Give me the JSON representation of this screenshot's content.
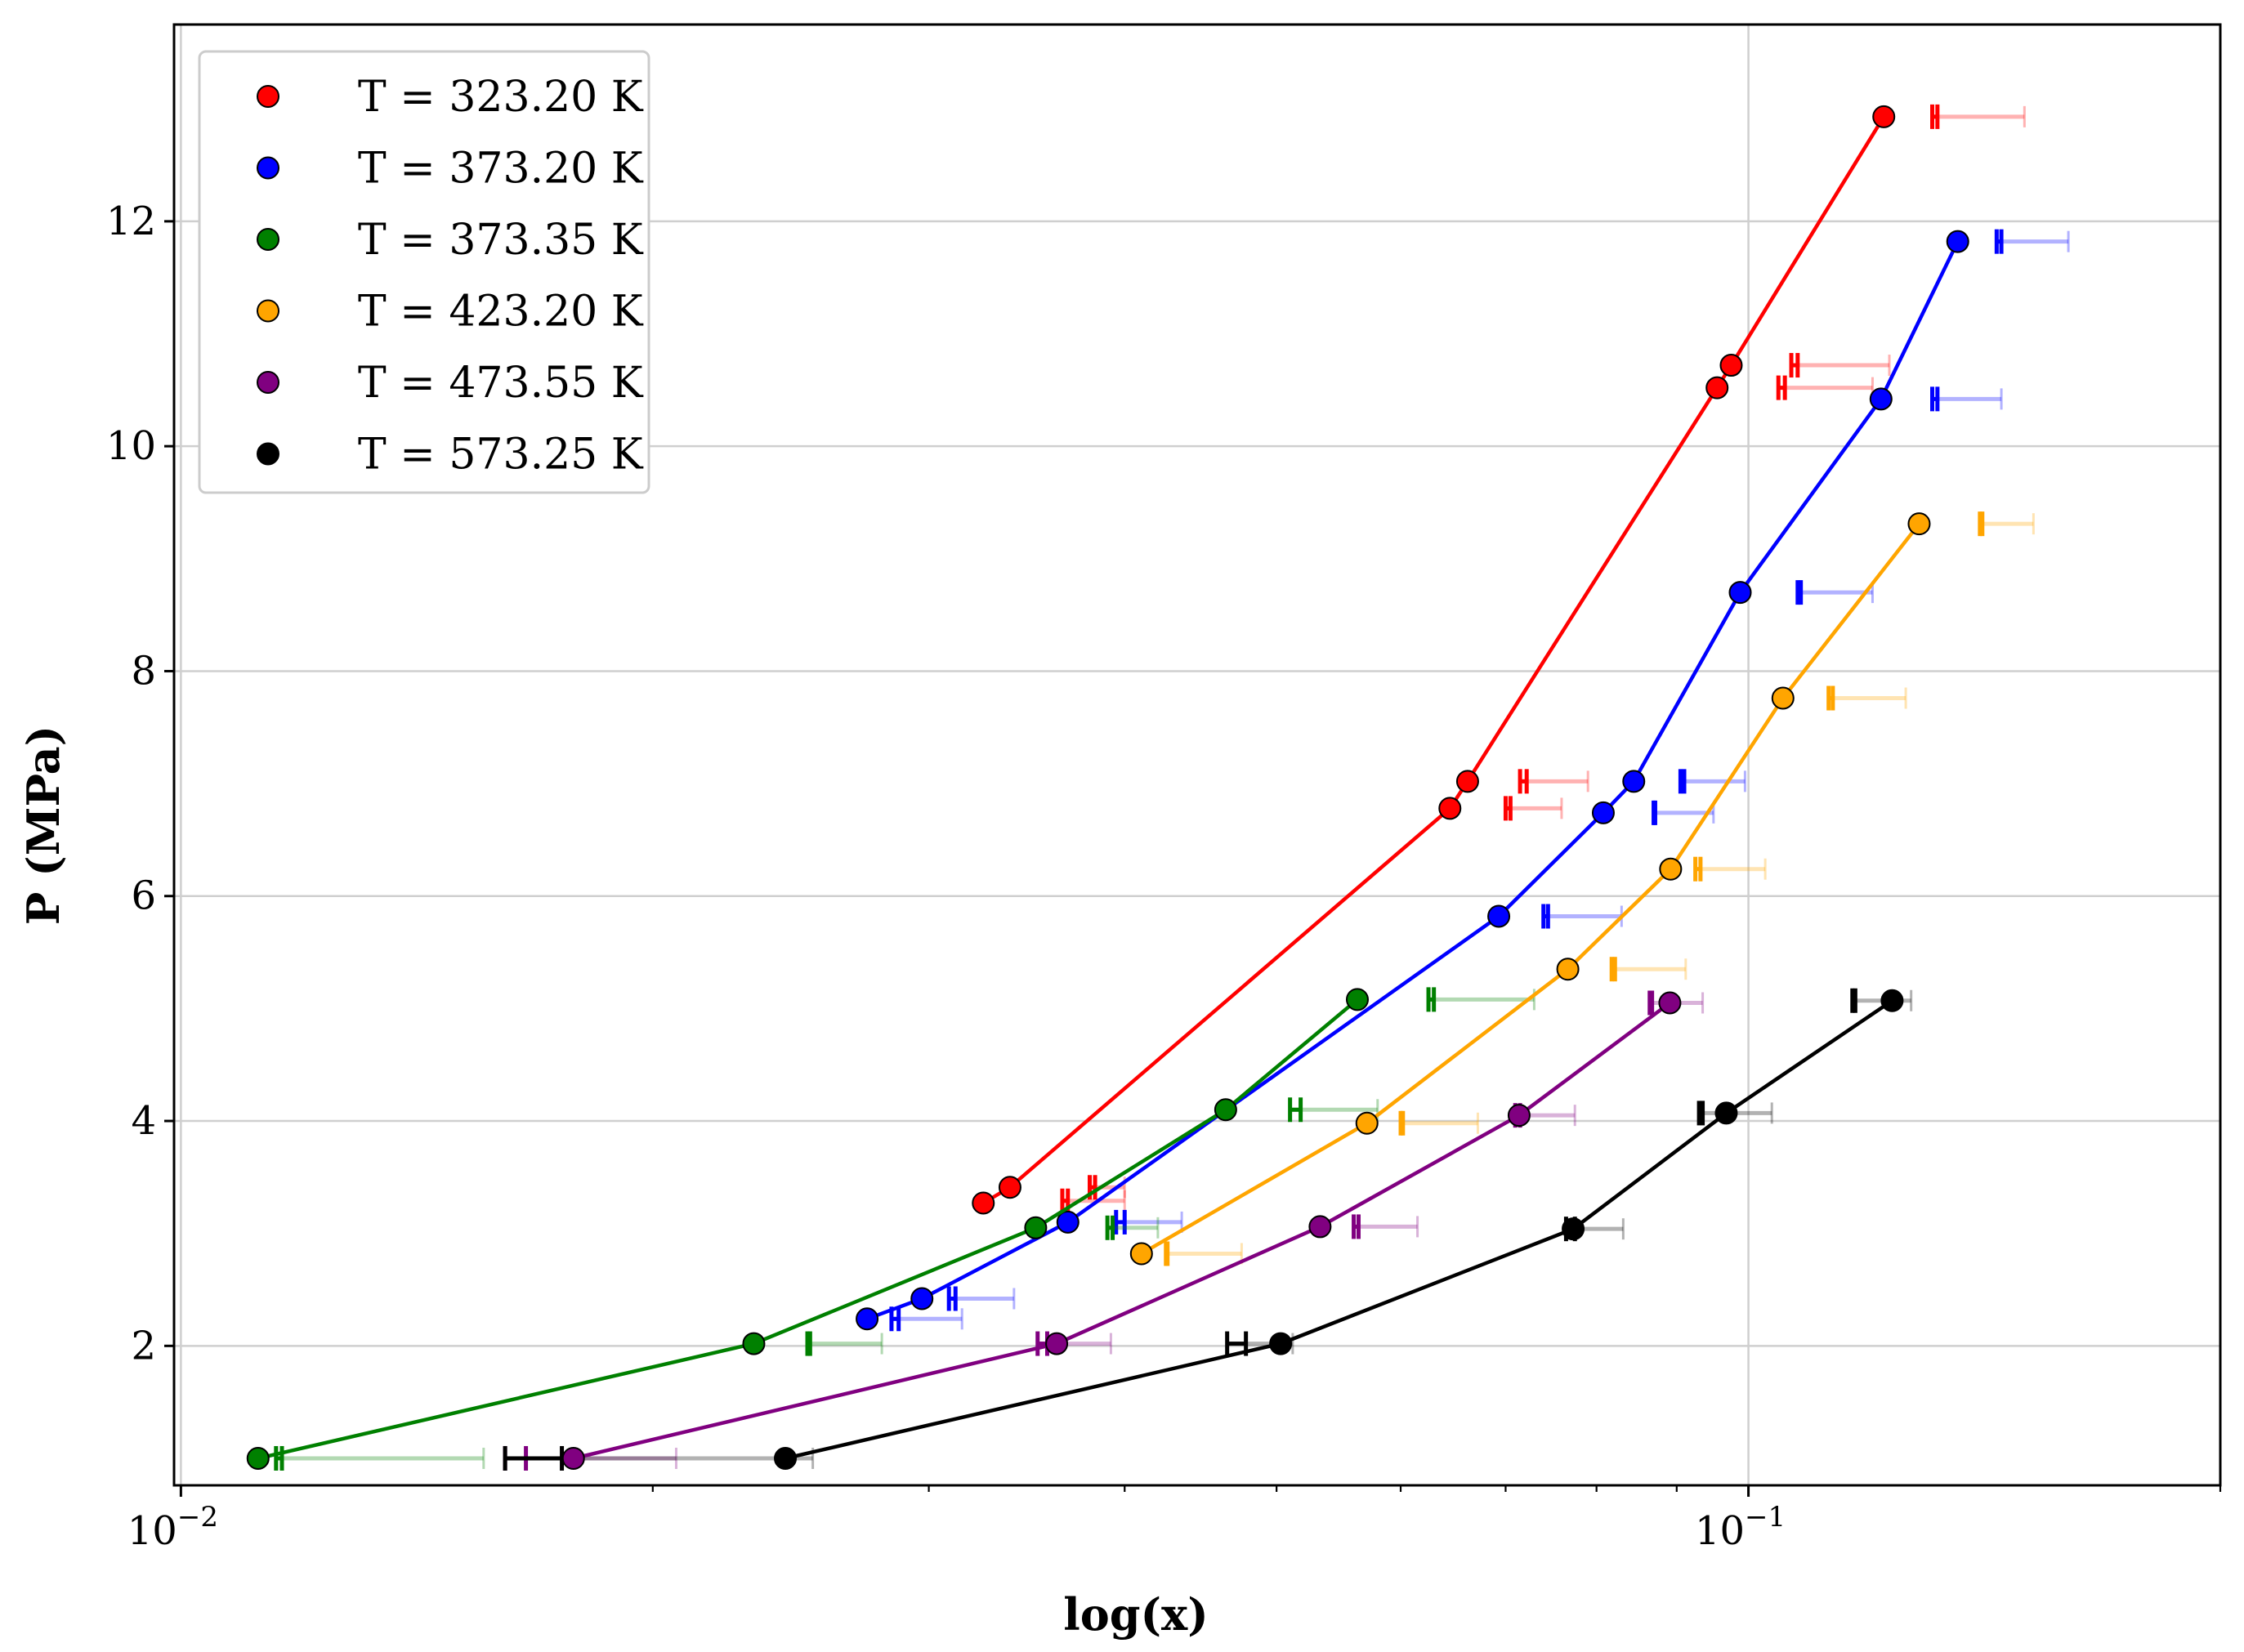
{
  "chart_data": {
    "type": "scatter",
    "xlabel": "log(x)",
    "ylabel": "P (MPa)",
    "xscale": "log",
    "xlim": [
      0.0099,
      0.2
    ],
    "ylim": [
      0.76,
      13.75
    ],
    "grid": true,
    "legend_position": "top-left",
    "x_major_ticks": [
      0.01,
      0.1
    ],
    "x_major_tick_labels": [
      {
        "base": "10",
        "exp": "−2"
      },
      {
        "base": "10",
        "exp": "−1"
      }
    ],
    "y_ticks": [
      2,
      4,
      6,
      8,
      10,
      12
    ],
    "y_tick_labels": [
      "2",
      "4",
      "6",
      "8",
      "10",
      "12"
    ],
    "series": [
      {
        "name": "T = 323.20 K",
        "color": "#ff0000",
        "x": [
          0.0325,
          0.0338,
          0.0645,
          0.0662,
          0.0955,
          0.0975,
          0.122
        ],
        "y": [
          3.27,
          3.41,
          6.78,
          7.02,
          10.52,
          10.72,
          12.93
        ],
        "errorbars": [
          {
            "x": 0.0368,
            "y": 3.29,
            "lo": 0.0365,
            "hi": 0.04
          },
          {
            "x": 0.0383,
            "y": 3.41,
            "lo": 0.038,
            "hi": 0.04
          },
          {
            "x": 0.0705,
            "y": 6.78,
            "lo": 0.07,
            "hi": 0.076
          },
          {
            "x": 0.0722,
            "y": 7.02,
            "lo": 0.0715,
            "hi": 0.079
          },
          {
            "x": 0.1055,
            "y": 10.52,
            "lo": 0.1045,
            "hi": 0.12
          },
          {
            "x": 0.1075,
            "y": 10.72,
            "lo": 0.1065,
            "hi": 0.123
          },
          {
            "x": 0.132,
            "y": 12.93,
            "lo": 0.131,
            "hi": 0.15
          }
        ]
      },
      {
        "name": "T = 373.20 K",
        "color": "#0000ff",
        "x": [
          0.0274,
          0.0297,
          0.0368,
          0.0693,
          0.0808,
          0.0845,
          0.0988,
          0.1215,
          0.136
        ],
        "y": [
          2.24,
          2.42,
          3.1,
          5.82,
          6.74,
          7.02,
          8.7,
          10.42,
          11.82
        ],
        "errorbars": [
          {
            "x": 0.0287,
            "y": 2.24,
            "lo": 0.0284,
            "hi": 0.0315
          },
          {
            "x": 0.0312,
            "y": 2.42,
            "lo": 0.0309,
            "hi": 0.034
          },
          {
            "x": 0.04,
            "y": 3.1,
            "lo": 0.0395,
            "hi": 0.0435
          },
          {
            "x": 0.0745,
            "y": 5.82,
            "lo": 0.074,
            "hi": 0.083
          },
          {
            "x": 0.0872,
            "y": 6.74,
            "lo": 0.087,
            "hi": 0.095
          },
          {
            "x": 0.091,
            "y": 7.02,
            "lo": 0.0905,
            "hi": 0.0995
          },
          {
            "x": 0.108,
            "y": 8.7,
            "lo": 0.1075,
            "hi": 0.12
          },
          {
            "x": 0.132,
            "y": 10.42,
            "lo": 0.131,
            "hi": 0.145
          },
          {
            "x": 0.145,
            "y": 11.82,
            "lo": 0.144,
            "hi": 0.16
          }
        ]
      },
      {
        "name": "T = 373.35 K",
        "color": "#008000",
        "x": [
          0.0112,
          0.0232,
          0.0351,
          0.0464,
          0.0563
        ],
        "y": [
          1.0,
          2.02,
          3.05,
          4.1,
          5.08
        ],
        "errorbars": [
          {
            "x": 0.0115,
            "y": 1.0,
            "lo": 0.0116,
            "hi": 0.0156
          },
          {
            "x": 0.0252,
            "y": 2.02,
            "lo": 0.0251,
            "hi": 0.028
          },
          {
            "x": 0.0393,
            "y": 3.05,
            "lo": 0.039,
            "hi": 0.042
          },
          {
            "x": 0.0518,
            "y": 4.1,
            "lo": 0.051,
            "hi": 0.058
          },
          {
            "x": 0.063,
            "y": 5.08,
            "lo": 0.0625,
            "hi": 0.073
          }
        ]
      },
      {
        "name": "T = 423.20 K",
        "color": "#ffa500",
        "x": [
          0.041,
          0.0571,
          0.0767,
          0.0892,
          0.1052,
          0.1285
        ],
        "y": [
          2.82,
          3.98,
          5.35,
          6.24,
          7.76,
          9.31
        ],
        "errorbars": [
          {
            "x": 0.0426,
            "y": 2.82,
            "lo": 0.0425,
            "hi": 0.0475
          },
          {
            "x": 0.0602,
            "y": 3.98,
            "lo": 0.06,
            "hi": 0.0672
          },
          {
            "x": 0.0822,
            "y": 5.35,
            "lo": 0.0818,
            "hi": 0.0912
          },
          {
            "x": 0.0932,
            "y": 6.24,
            "lo": 0.0925,
            "hi": 0.1025
          },
          {
            "x": 0.1132,
            "y": 7.76,
            "lo": 0.1125,
            "hi": 0.126
          },
          {
            "x": 0.141,
            "y": 9.31,
            "lo": 0.1405,
            "hi": 0.152
          }
        ]
      },
      {
        "name": "T = 473.55 K",
        "color": "#800080",
        "x": [
          0.0178,
          0.0362,
          0.0533,
          0.0714,
          0.0891
        ],
        "y": [
          1.0,
          2.02,
          3.06,
          4.05,
          5.05
        ],
        "errorbars": [
          {
            "x": 0.0166,
            "y": 1.0,
            "lo": 0.0161,
            "hi": 0.0207
          },
          {
            "x": 0.0357,
            "y": 2.02,
            "lo": 0.0352,
            "hi": 0.0392
          },
          {
            "x": 0.0564,
            "y": 3.06,
            "lo": 0.056,
            "hi": 0.0615
          },
          {
            "x": 0.0715,
            "y": 4.05,
            "lo": 0.071,
            "hi": 0.0775
          },
          {
            "x": 0.0868,
            "y": 5.05,
            "lo": 0.0865,
            "hi": 0.0935
          }
        ]
      },
      {
        "name": "T = 573.25 K",
        "color": "#000000",
        "x": [
          0.0243,
          0.0503,
          0.0773,
          0.0968,
          0.1235
        ],
        "y": [
          1.0,
          2.02,
          3.04,
          4.07,
          5.07
        ],
        "errorbars": [
          {
            "x": 0.0175,
            "y": 1.0,
            "lo": 0.0161,
            "hi": 0.0253
          },
          {
            "x": 0.0478,
            "y": 2.02,
            "lo": 0.0465,
            "hi": 0.0512
          },
          {
            "x": 0.0775,
            "y": 3.04,
            "lo": 0.0765,
            "hi": 0.0832
          },
          {
            "x": 0.0935,
            "y": 4.07,
            "lo": 0.093,
            "hi": 0.1035
          },
          {
            "x": 0.117,
            "y": 5.07,
            "lo": 0.1165,
            "hi": 0.127
          }
        ]
      }
    ]
  }
}
